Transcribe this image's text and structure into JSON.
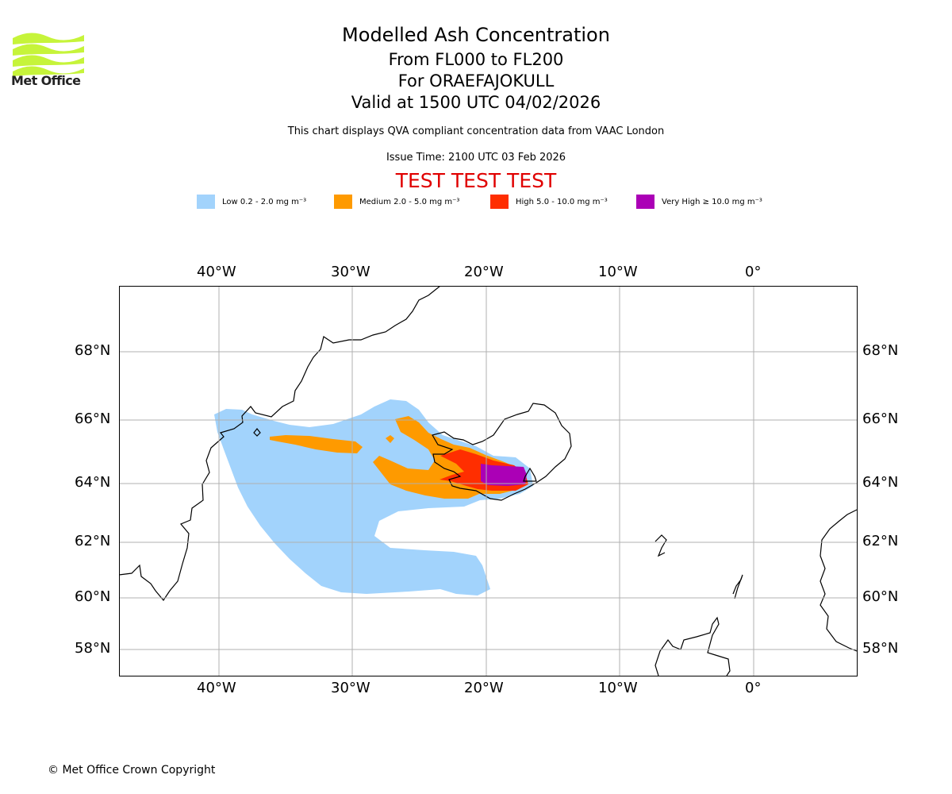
{
  "header": {
    "logo_text": "Met Office",
    "title": "Modelled Ash Concentration",
    "flight_levels": "From FL000 to FL200",
    "volcano": "For ORAEFAJOKULL",
    "valid_time": "Valid at 1500 UTC 04/02/2026",
    "chart_note": "This chart displays QVA compliant concentration data from VAAC London",
    "issue_time": "Issue Time: 2100 UTC 03 Feb 2026",
    "test_banner": "TEST TEST TEST"
  },
  "legend": [
    {
      "label": "Low 0.2 - 2.0 mg m⁻³",
      "color": "#a2d3fc"
    },
    {
      "label": "Medium 2.0 - 5.0 mg m⁻³",
      "color": "#fe9a00"
    },
    {
      "label": "High 5.0 - 10.0 mg m⁻³",
      "color": "#ff2e00"
    },
    {
      "label": "Very High  ≥  10.0 mg m⁻³",
      "color": "#ab00b6"
    }
  ],
  "map": {
    "longitude_labels": [
      "40°W",
      "30°W",
      "20°W",
      "10°W",
      "0°"
    ],
    "latitude_labels": [
      "68°N",
      "66°N",
      "64°N",
      "62°N",
      "60°N",
      "58°N"
    ]
  },
  "colors": {
    "logo": "#c6f43a",
    "banner": "#e00000",
    "grid": "#b0b0b0"
  },
  "footer": {
    "copyright": "© Met Office Crown Copyright"
  }
}
